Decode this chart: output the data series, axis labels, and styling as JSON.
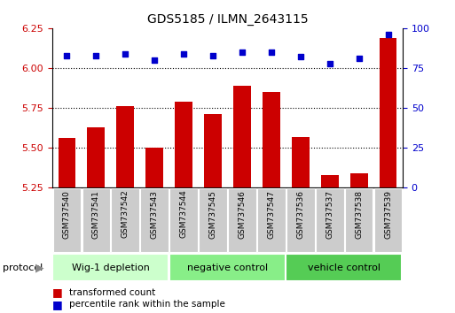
{
  "title": "GDS5185 / ILMN_2643115",
  "categories": [
    "GSM737540",
    "GSM737541",
    "GSM737542",
    "GSM737543",
    "GSM737544",
    "GSM737545",
    "GSM737546",
    "GSM737547",
    "GSM737536",
    "GSM737537",
    "GSM737538",
    "GSM737539"
  ],
  "bar_values": [
    5.56,
    5.63,
    5.76,
    5.5,
    5.79,
    5.71,
    5.89,
    5.85,
    5.57,
    5.33,
    5.34,
    6.19
  ],
  "dot_values": [
    83,
    83,
    84,
    80,
    84,
    83,
    85,
    85,
    82,
    78,
    81,
    96
  ],
  "ylim_left": [
    5.25,
    6.25
  ],
  "ylim_right": [
    0,
    100
  ],
  "yticks_left": [
    5.25,
    5.5,
    5.75,
    6.0,
    6.25
  ],
  "yticks_right": [
    0,
    25,
    50,
    75,
    100
  ],
  "bar_color": "#cc0000",
  "dot_color": "#0000cc",
  "bar_bottom": 5.25,
  "groups": [
    {
      "label": "Wig-1 depletion",
      "start": 0,
      "end": 4
    },
    {
      "label": "negative control",
      "start": 4,
      "end": 8
    },
    {
      "label": "vehicle control",
      "start": 8,
      "end": 12
    }
  ],
  "group_colors": [
    "#ccffcc",
    "#88ee88",
    "#55cc55"
  ],
  "protocol_label": "protocol",
  "legend_bar_label": "transformed count",
  "legend_dot_label": "percentile rank within the sample",
  "grid_color": "#000000",
  "bg_color": "#ffffff",
  "tick_label_color_left": "#cc0000",
  "tick_label_color_right": "#0000cc",
  "xticklabel_bg": "#cccccc"
}
